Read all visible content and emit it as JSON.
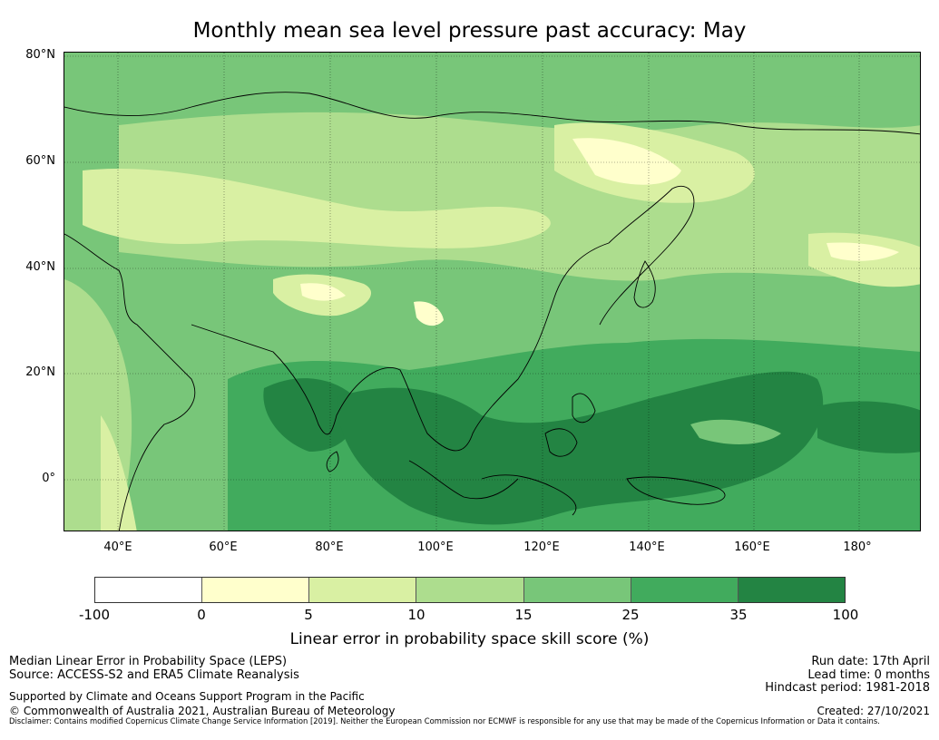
{
  "title": "Monthly mean sea level pressure past accuracy: May",
  "map": {
    "latitude_ticks": [
      "80°N",
      "60°N",
      "40°N",
      "20°N",
      "0°"
    ],
    "longitude_ticks": [
      "40°E",
      "60°E",
      "80°E",
      "100°E",
      "120°E",
      "140°E",
      "160°E",
      "180°"
    ],
    "skill_zones": [
      {
        "region": "Arctic / Northern Siberia",
        "class": "15-25"
      },
      {
        "region": "Central Siberia",
        "class": "5-10"
      },
      {
        "region": "Eastern Siberia",
        "class": "0-5"
      },
      {
        "region": "Central Asia",
        "class": "15-25"
      },
      {
        "region": "Tibetan Plateau",
        "class": "0-5"
      },
      {
        "region": "India / Bay of Bengal",
        "class": "35-100"
      },
      {
        "region": "Maritime Continent / Western Pacific",
        "class": "35-100"
      },
      {
        "region": "North Pacific",
        "class": "10-15"
      }
    ]
  },
  "colorbar": {
    "colors": [
      "#ffffff",
      "#ffffcc",
      "#d9f0a3",
      "#addd8e",
      "#78c679",
      "#41ab5d",
      "#238443"
    ],
    "ticks": [
      "-100",
      "0",
      "5",
      "10",
      "15",
      "25",
      "35",
      "100"
    ],
    "label": "Linear error in probability space skill score (%)"
  },
  "footer": {
    "left_1": "Median Linear Error in Probability Space (LEPS)",
    "left_2": "Source: ACCESS-S2 and ERA5 Climate Reanalysis",
    "left_3": "Supported by Climate and Oceans Support Program in the Pacific",
    "left_4": "© Commonwealth of Australia 2021, Australian Bureau of Meteorology",
    "right_1": "Run date: 17th April",
    "right_2": "Lead time: 0 months",
    "right_3": "Hindcast period: 1981-2018",
    "right_4": "Created: 27/10/2021",
    "disclaimer": "Disclaimer: Contains modified Copernicus Climate Change Service Information [2019]. Neither the European Commission nor ECMWF is responsible for any use that may be made of the Copernicus Information or Data it contains."
  }
}
